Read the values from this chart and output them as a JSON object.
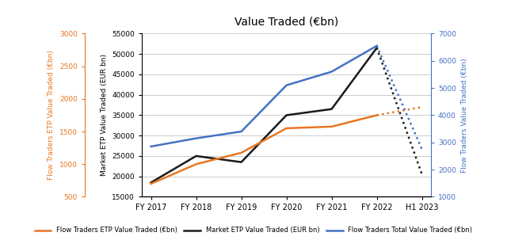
{
  "title": "Value Traded (€bn)",
  "x_labels": [
    "FY 2017",
    "FY 2018",
    "FY 2019",
    "FY 2020",
    "FY 2021",
    "FY 2022",
    "H1 2023"
  ],
  "flow_etp_solid": [
    700,
    1000,
    1175,
    1550,
    1575,
    1750
  ],
  "flow_etp_dotted": [
    1750,
    1875
  ],
  "market_etp_solid": [
    18500,
    25000,
    23500,
    35000,
    36500,
    51500
  ],
  "market_etp_dotted": [
    51500,
    20500
  ],
  "flow_total_solid": [
    2850,
    3150,
    3400,
    5100,
    5600,
    6550
  ],
  "flow_total_dotted": [
    6550,
    2750
  ],
  "left_orange_label": "Flow Traders ETP Value Traded (€bn)",
  "left_black_label": "Market ETP Value Traded (EUR bn)",
  "right_blue_label": "Flow Traders Value Traded (€bn)",
  "ylim_orange": [
    500,
    3000
  ],
  "ylim_black": [
    15000,
    55000
  ],
  "ylim_blue": [
    1000,
    7000
  ],
  "yticks_orange": [
    500,
    1000,
    1500,
    2000,
    2500,
    3000
  ],
  "yticks_black": [
    15000,
    20000,
    25000,
    30000,
    35000,
    40000,
    45000,
    50000,
    55000
  ],
  "yticks_blue": [
    1000,
    2000,
    3000,
    4000,
    5000,
    6000,
    7000
  ],
  "legend_labels": [
    "Flow Traders ETP Value Traded (€bn)",
    "Market ETP Value Traded (EUR bn)",
    "Flow Traders Total Value Traded (€bn)"
  ],
  "line_colors": [
    "#E87722",
    "#1A1A1A",
    "#4472C4"
  ],
  "background_color": "#FFFFFF",
  "grid_color": "#CCCCCC"
}
